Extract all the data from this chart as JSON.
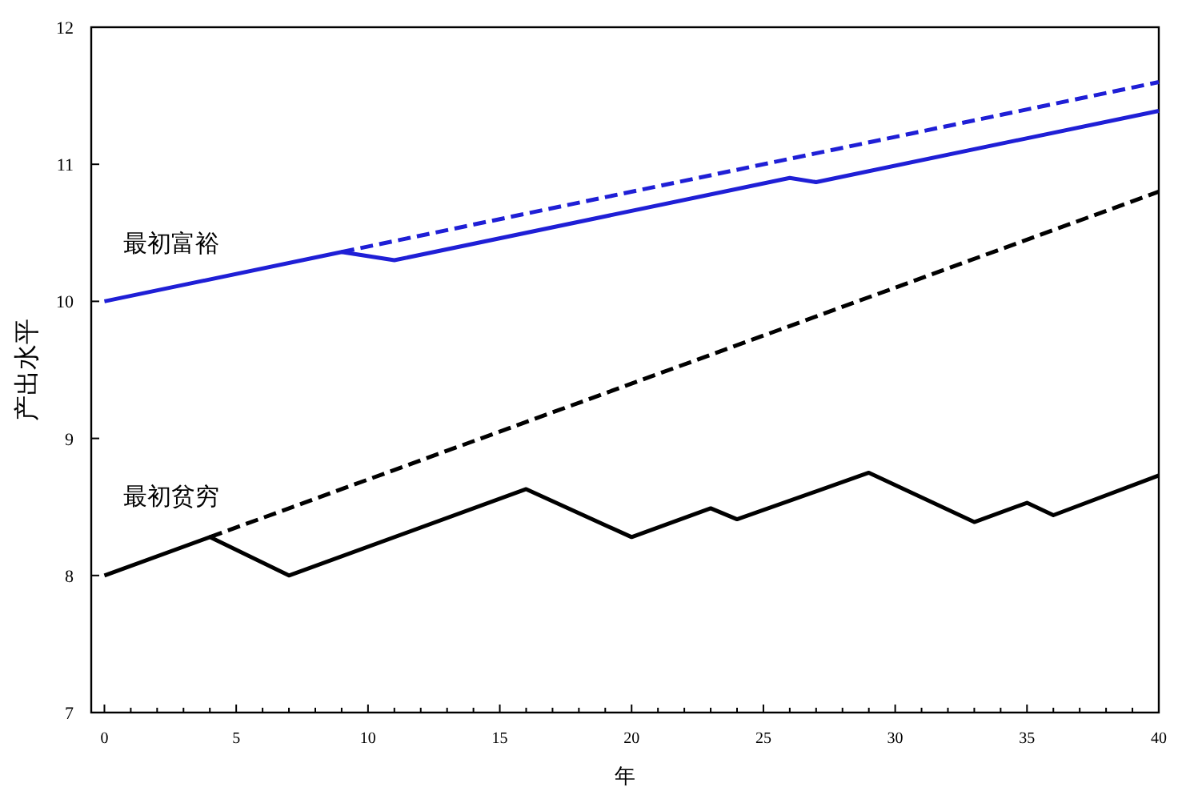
{
  "chart_data": {
    "type": "line",
    "xlabel": "年",
    "ylabel": "产出水平",
    "xlim": [
      -0.5,
      40
    ],
    "ylim": [
      7,
      12
    ],
    "xticks": [
      0,
      {
        "value": 1,
        "label": null
      },
      {
        "value": 2,
        "label": null
      },
      {
        "value": 3,
        "label": null
      },
      {
        "value": 4,
        "label": null
      },
      5,
      {
        "value": 6,
        "label": null
      },
      {
        "value": 7,
        "label": null
      },
      {
        "value": 8,
        "label": null
      },
      {
        "value": 9,
        "label": null
      },
      10,
      {
        "value": 11,
        "label": null
      },
      {
        "value": 12,
        "label": null
      },
      {
        "value": 13,
        "label": null
      },
      {
        "value": 14,
        "label": null
      },
      15,
      {
        "value": 16,
        "label": null
      },
      {
        "value": 17,
        "label": null
      },
      {
        "value": 18,
        "label": null
      },
      {
        "value": 19,
        "label": null
      },
      20,
      {
        "value": 21,
        "label": null
      },
      {
        "value": 22,
        "label": null
      },
      {
        "value": 23,
        "label": null
      },
      {
        "value": 24,
        "label": null
      },
      25,
      {
        "value": 26,
        "label": null
      },
      {
        "value": 27,
        "label": null
      },
      {
        "value": 28,
        "label": null
      },
      {
        "value": 29,
        "label": null
      },
      30,
      {
        "value": 31,
        "label": null
      },
      {
        "value": 32,
        "label": null
      },
      {
        "value": 33,
        "label": null
      },
      {
        "value": 34,
        "label": null
      },
      35,
      {
        "value": 36,
        "label": null
      },
      {
        "value": 37,
        "label": null
      },
      {
        "value": 38,
        "label": null
      },
      {
        "value": 39,
        "label": null
      },
      40
    ],
    "yticks": [
      7,
      8,
      9,
      10,
      11,
      12
    ],
    "grid": false,
    "marker": "none",
    "series": [
      {
        "color": "#1f1fd6",
        "line_style": "dashed",
        "x": [
          9,
          40
        ],
        "values": [
          10.36,
          11.6
        ]
      },
      {
        "color": "#1f1fd6",
        "line_style": "solid",
        "x": [
          0,
          9,
          11,
          26,
          27,
          40
        ],
        "values": [
          10,
          10.36,
          10.3,
          10.9,
          10.87,
          11.39
        ]
      },
      {
        "color": "#000000",
        "line_style": "dashed",
        "x": [
          4,
          40
        ],
        "values": [
          8.28,
          10.8
        ]
      },
      {
        "color": "#000000",
        "line_style": "solid",
        "x": [
          0,
          4,
          7,
          16,
          20,
          23,
          24,
          29,
          33,
          35,
          36,
          40
        ],
        "values": [
          8,
          8.28,
          8,
          8.63,
          8.28,
          8.49,
          8.41,
          8.75,
          8.39,
          8.53,
          8.44,
          8.73
        ]
      }
    ],
    "annotations": [
      "最初富裕",
      "最初贫穷"
    ]
  }
}
